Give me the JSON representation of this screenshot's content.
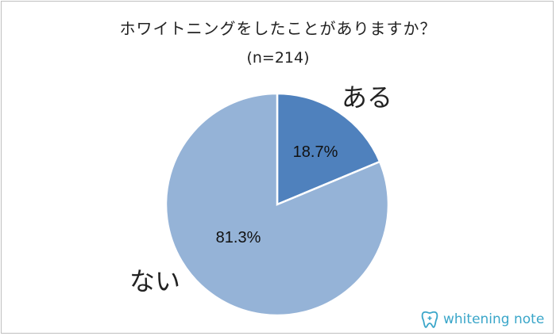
{
  "chart_data": {
    "type": "pie",
    "title": "ホワイトニングをしたことがありますか？",
    "subtitle": "(n=214)",
    "slices": [
      {
        "label": "ある",
        "value": 18.7,
        "value_label": "18.7%",
        "color": "#4f81bd"
      },
      {
        "label": "ない",
        "value": 81.3,
        "value_label": "81.3%",
        "color": "#95b3d7"
      }
    ],
    "start": "12 o'clock",
    "direction": "clockwise",
    "legend": "none"
  },
  "logo": {
    "text": "whitening note",
    "icon": "tooth-icon",
    "color": "#3aa6c9"
  }
}
